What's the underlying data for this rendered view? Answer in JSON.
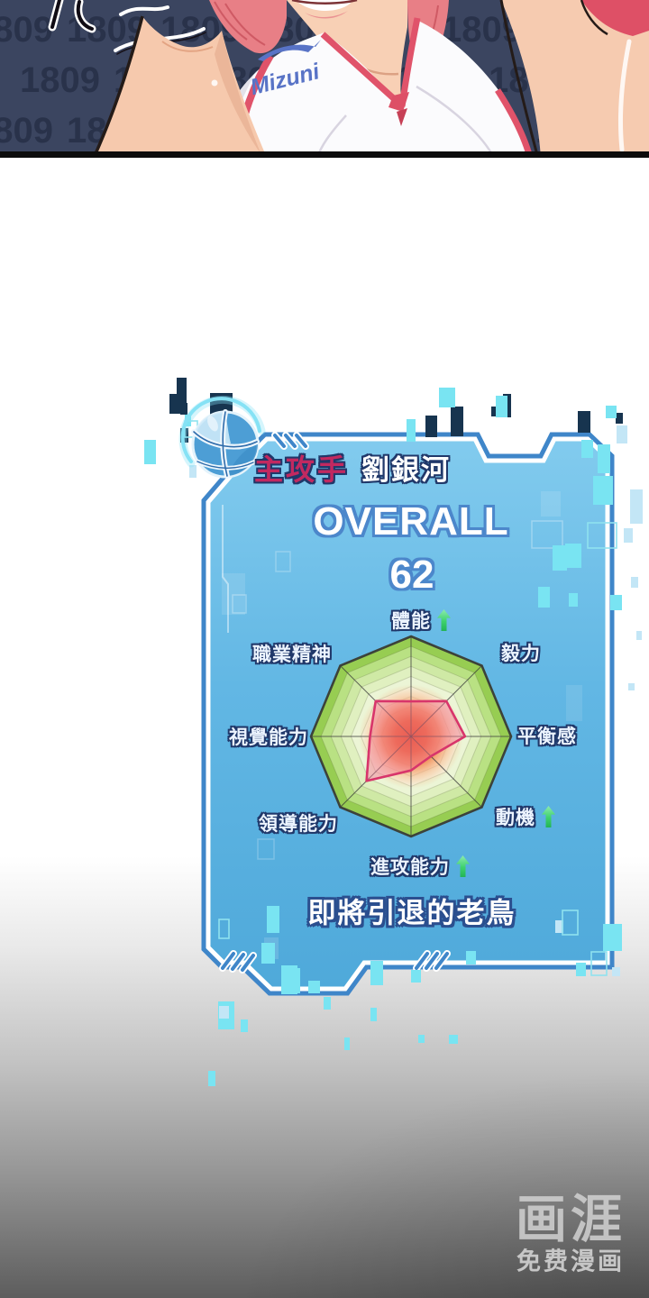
{
  "comic": {
    "jersey_logo": "Mizuni",
    "watermark": "1809"
  },
  "card": {
    "role": "主攻手",
    "player_name": "劉銀河",
    "overall_label": "OVERALL",
    "overall_value": "62",
    "caption": "即將引退的老鳥",
    "border_color": "#3f86c9",
    "fill_top": "#82cbee",
    "fill_bottom": "#4fa9da"
  },
  "chart_data": {
    "type": "radar",
    "title": "OVERALL 62",
    "scale_max": 1,
    "rings": 10,
    "legend_position": "none",
    "grid": true,
    "axes": [
      {
        "label": "體能",
        "value": 0.35,
        "trend": "up"
      },
      {
        "label": "毅力",
        "value": 0.5,
        "trend": null
      },
      {
        "label": "平衡感",
        "value": 0.54,
        "trend": null
      },
      {
        "label": "動機",
        "value": 0.28,
        "trend": "up"
      },
      {
        "label": "進攻能力",
        "value": 0.34,
        "trend": "up"
      },
      {
        "label": "領導能力",
        "value": 0.63,
        "trend": null
      },
      {
        "label": "視覺能力",
        "value": 0.41,
        "trend": null
      },
      {
        "label": "職業精神",
        "value": 0.5,
        "trend": null
      }
    ],
    "ring_colors": [
      "#97cd52",
      "#b9e183",
      "#cfe9a5",
      "#e0f0c0",
      "#ecf5d6",
      "#f5f8e4",
      "#faf2dd",
      "#f9e6ca",
      "#f6cfac",
      "#f2b285"
    ],
    "polygon_stroke": "#d8356b",
    "polygon_fill": "rgba(244,120,150,0.45)",
    "arrow_color": "#3fd26d",
    "heat_center_color": "#e0481d"
  },
  "platform_logo": {
    "name": "画涯",
    "tagline": "免费漫画"
  }
}
